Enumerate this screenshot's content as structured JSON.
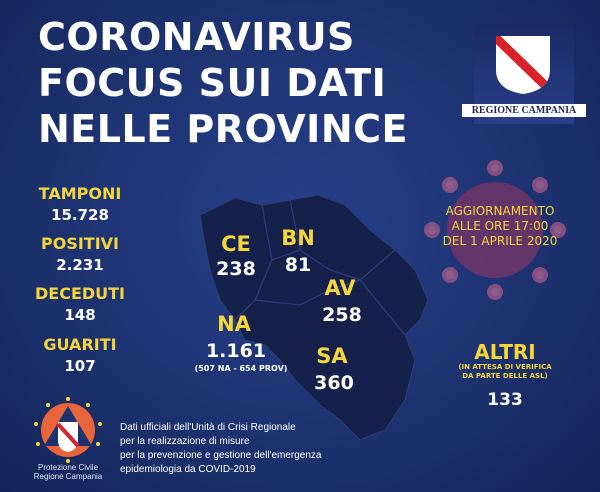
{
  "title": [
    "CORONAVIRUS",
    "FOCUS SUI DATI",
    "NELLE PROVINCE"
  ],
  "logo_region": {
    "label": "REGIONE CAMPANIA"
  },
  "stats": [
    {
      "label": "TAMPONI",
      "value": "15.728"
    },
    {
      "label": "POSITIVI",
      "value": "2.231"
    },
    {
      "label": "DECEDUTI",
      "value": "148"
    },
    {
      "label": "GUARITI",
      "value": "107"
    }
  ],
  "update": [
    "AGGIORNAMENTO",
    "ALLE ORE 17:00",
    "DEL 1 APRILE 2020"
  ],
  "provinces": {
    "ce": {
      "label": "CE",
      "value": "238"
    },
    "bn": {
      "label": "BN",
      "value": "81"
    },
    "av": {
      "label": "AV",
      "value": "258"
    },
    "na": {
      "label": "NA",
      "value": "1.161",
      "note": "(507 NA - 654 PROV)"
    },
    "sa": {
      "label": "SA",
      "value": "360"
    }
  },
  "altri": {
    "label": "ALTRI",
    "note": [
      "(IN ATTESA DI VERIFICA",
      "DA PARTE DELLE ASL)"
    ],
    "value": "133"
  },
  "footer": {
    "lines": [
      "Dati ufficiali dell'Unità di Crisi Regionale",
      "per la realizzazione di misure",
      "per la prevenzione e gestione dell'emergenza",
      "epidemiologia da COVID-2019"
    ],
    "logo_label": [
      "Protezione Civile",
      "Regione Campania"
    ]
  },
  "colors": {
    "background": "#1d3270",
    "accent": "#f4d63c",
    "map": "#15214a",
    "virus": "#8a3a6a"
  }
}
